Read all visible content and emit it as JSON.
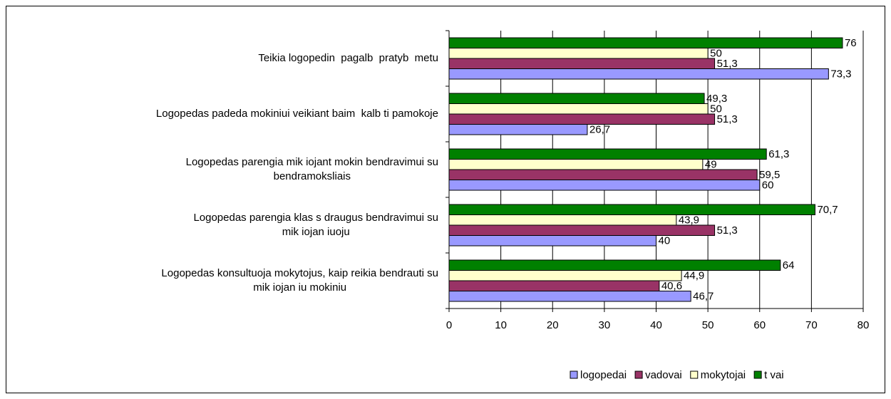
{
  "chart_data": {
    "type": "hbar",
    "categories": [
      [
        "Teikia logopedin  pagalb  pratyb  metu"
      ],
      [
        "Logopedas padeda mokiniui veikiant baim  kalb ti pamokoje"
      ],
      [
        "Logopedas parengia mik iojant mokin bendravimui su",
        "bendramoksliais"
      ],
      [
        "Logopedas parengia klas s draugus bendravimui su",
        "mik iojan iuoju"
      ],
      [
        "Logopedas konsultuoja mokytojus, kaip reikia bendrauti su",
        "mik iojan iu mokiniu"
      ]
    ],
    "series": [
      {
        "name": "logopedai",
        "color": "#9999ff",
        "values": [
          73.3,
          26.7,
          60,
          40,
          46.7
        ],
        "value_labels": [
          "73,3",
          "26,7",
          "60",
          "40",
          "46,7"
        ]
      },
      {
        "name": "vadovai",
        "color": "#993366",
        "values": [
          51.3,
          51.3,
          59.5,
          51.3,
          40.6
        ],
        "value_labels": [
          "51,3",
          "51,3",
          "59,5",
          "51,3",
          "40,6"
        ]
      },
      {
        "name": "mokytojai",
        "color": "#ffffcc",
        "values": [
          50,
          50,
          49,
          43.9,
          44.9
        ],
        "value_labels": [
          "50",
          "50",
          "49",
          "43,9",
          "44,9"
        ]
      },
      {
        "name": "t vai",
        "color": "#008000",
        "values": [
          76,
          49.3,
          61.3,
          70.7,
          64
        ],
        "value_labels": [
          "76",
          "49,3",
          "61,3",
          "70,7",
          "64"
        ]
      }
    ],
    "xlim": [
      0,
      80
    ],
    "xticks": [
      0,
      10,
      20,
      30,
      40,
      50,
      60,
      70,
      80
    ],
    "grid": true,
    "legend": "bottom"
  }
}
